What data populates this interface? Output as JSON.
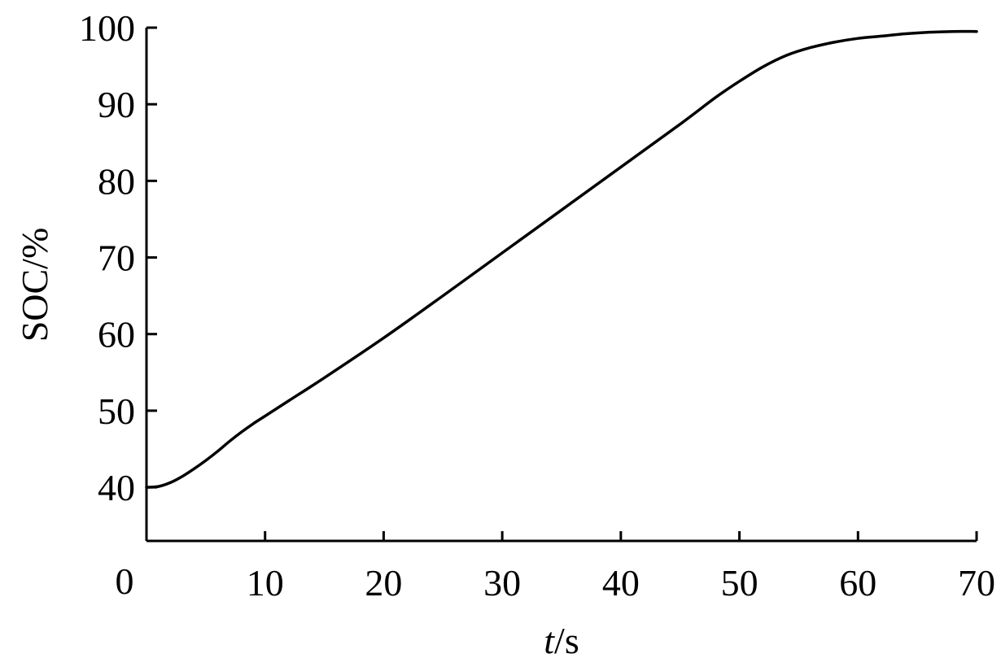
{
  "chart_data": {
    "type": "line",
    "title": "",
    "xlabel": {
      "italic": "t",
      "rest": "/s"
    },
    "ylabel": "SOC/%",
    "xlim": [
      0,
      70
    ],
    "ylim": [
      33,
      100
    ],
    "x_origin_label": "0",
    "xticks": [
      10,
      20,
      30,
      40,
      50,
      60,
      70
    ],
    "xtick_labels": [
      "10",
      "20",
      "30",
      "40",
      "50",
      "60",
      "70"
    ],
    "yticks": [
      40,
      50,
      60,
      70,
      80,
      90,
      100
    ],
    "ytick_labels": [
      "40",
      "50",
      "60",
      "70",
      "80",
      "90",
      "100"
    ],
    "grid": false,
    "legend": "none",
    "line_color": "#000000",
    "series": [
      {
        "x": [
          0,
          1,
          2,
          3,
          4,
          5,
          6,
          7,
          8,
          9,
          10,
          12,
          15,
          20,
          25,
          30,
          35,
          40,
          45,
          48,
          50,
          52,
          54,
          56,
          58,
          60,
          62,
          64,
          66,
          68,
          70
        ],
        "y": [
          40,
          40.1,
          40.6,
          41.4,
          42.4,
          43.5,
          44.7,
          46.0,
          47.2,
          48.3,
          49.3,
          51.3,
          54.3,
          59.5,
          65.0,
          70.6,
          76.2,
          81.8,
          87.4,
          90.9,
          93.0,
          94.9,
          96.4,
          97.4,
          98.1,
          98.6,
          98.9,
          99.2,
          99.4,
          99.5,
          99.5
        ]
      }
    ]
  }
}
